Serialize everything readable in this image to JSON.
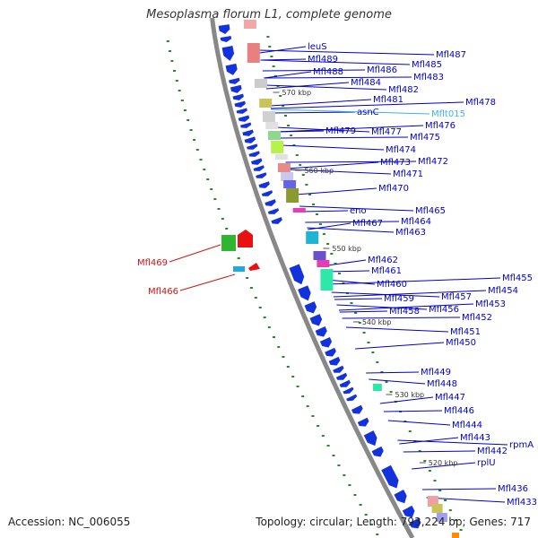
{
  "title": "Mesoplasma florum L1, complete genome",
  "footer": {
    "accession": "Accession: NC_006055",
    "topology": "Topology: circular; Length: 793,224 bp; Genes: 717"
  },
  "colors": {
    "gene_label": "#0000cc",
    "rna_label": "#3cb4e6",
    "reverse_label": "#d21414",
    "cds_arrow": "#1432dc",
    "backbone": "#888888",
    "gc_dots": "#228b22"
  },
  "scale_ticks": [
    "570 kbp",
    "560 kbp",
    "550 kbp",
    "540 kbp",
    "530 kbp",
    "520 kbp"
  ],
  "genes_forward": [
    "leuS",
    "Mfl489",
    "Mfl487",
    "Mfl488",
    "Mfl486",
    "Mfl485",
    "Mfl484",
    "Mfl483",
    "Mfl482",
    "Mfl481",
    "asnC",
    "Mflt015",
    "Mfl478",
    "Mfl479",
    "Mfl477",
    "Mfl476",
    "Mfl475",
    "Mfl474",
    "Mfl473",
    "Mfl472",
    "Mfl471",
    "Mfl470",
    "eno",
    "Mfl465",
    "Mfl467",
    "Mfl464",
    "Mfl463",
    "Mfl462",
    "Mfl461",
    "Mfl460",
    "Mfl455",
    "Mfl459",
    "Mfl457",
    "Mfl454",
    "Mfl458",
    "Mfl456",
    "Mfl453",
    "Mfl452",
    "Mfl451",
    "Mfl450",
    "Mfl449",
    "Mfl448",
    "Mfl447",
    "Mfl446",
    "Mfl444",
    "Mfl443",
    "Mfl442",
    "rpmA",
    "rplU",
    "Mfl436",
    "Mfl433"
  ],
  "genes_reverse": [
    "Mfl469",
    "Mfl466"
  ]
}
